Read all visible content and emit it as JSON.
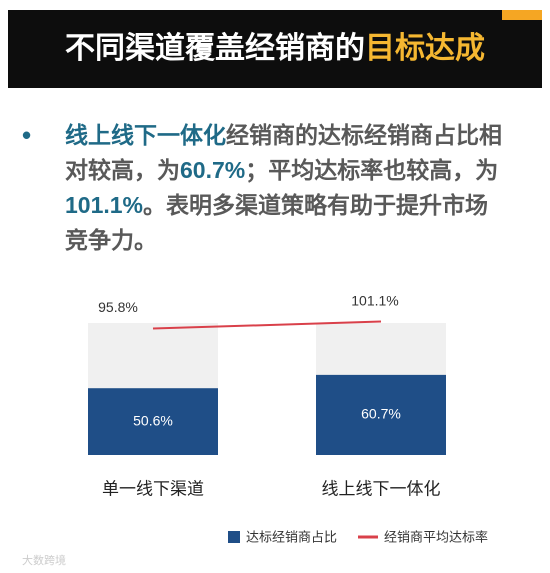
{
  "header": {
    "title": "不同渠道覆盖经销商的",
    "title_highlight": "目标达成"
  },
  "bullet": {
    "segments": [
      "线上线下一体化",
      "经销商的达标经销商占比相对较高，为",
      "60.7%",
      "；平均达标率也较高，为",
      "101.1%",
      "。表明多渠道策略有助于提升市场竞争力。"
    ]
  },
  "chart_data": {
    "type": "bar",
    "categories": [
      "单一线下渠道",
      "线上线下一体化"
    ],
    "ylim": [
      0,
      100
    ],
    "series": [
      {
        "name": "达标经销商占比",
        "type": "bar",
        "color": "#1f4e87",
        "values": [
          50.6,
          60.7
        ],
        "value_labels": [
          "50.6%",
          "60.7%"
        ]
      },
      {
        "name": "经销商平均达标率",
        "type": "line",
        "color": "#d9404a",
        "values": [
          95.8,
          101.1
        ],
        "value_labels": [
          "95.8%",
          "101.1%"
        ]
      }
    ],
    "legend": "bottom"
  },
  "watermark": "大数跨境"
}
